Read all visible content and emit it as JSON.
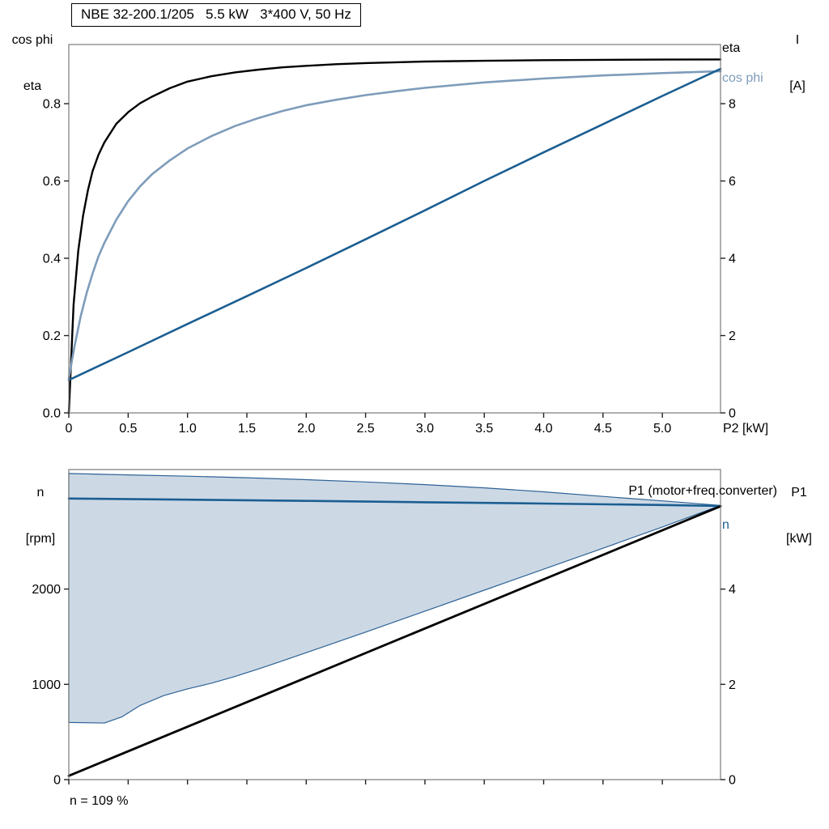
{
  "chart_data": [
    {
      "id": "motor-electrical-curves",
      "type": "line",
      "title": "NBE 32-200.1/205   5.5 kW   3*400 V, 50 Hz",
      "x_axis": {
        "label": "P2 [kW]",
        "min": 0,
        "max": 5.49,
        "ticks": [
          0,
          0.5,
          1,
          1.5,
          2,
          2.5,
          3,
          3.5,
          4,
          4.5,
          5
        ],
        "tick_labels": [
          "0",
          "0.5",
          "1.0",
          "1.5",
          "2.0",
          "2.5",
          "3.0",
          "3.5",
          "4.0",
          "4.5",
          "5.0"
        ]
      },
      "left_axis": {
        "label_line1": "cos phi",
        "label_line2": "eta",
        "min": 0,
        "max": 0.953,
        "ticks": [
          0,
          0.2,
          0.4,
          0.6,
          0.8
        ],
        "tick_labels": [
          "0.0",
          "0.2",
          "0.4",
          "0.6",
          "0.8"
        ]
      },
      "right_axis": {
        "label_line1": "I",
        "label_line2": "[A]",
        "min": 0,
        "max": 9.53,
        "ticks": [
          0,
          2,
          4,
          6,
          8
        ],
        "tick_labels": [
          "0",
          "2",
          "4",
          "6",
          "8"
        ]
      },
      "series": [
        {
          "id": "eta",
          "label": "eta",
          "color": "#000000",
          "width": 2.4,
          "axis": "left",
          "points": [
            [
              0,
              0
            ],
            [
              0.04,
              0.28
            ],
            [
              0.08,
              0.42
            ],
            [
              0.12,
              0.51
            ],
            [
              0.16,
              0.575
            ],
            [
              0.2,
              0.625
            ],
            [
              0.25,
              0.668
            ],
            [
              0.3,
              0.7
            ],
            [
              0.4,
              0.748
            ],
            [
              0.5,
              0.778
            ],
            [
              0.6,
              0.801
            ],
            [
              0.7,
              0.818
            ],
            [
              0.85,
              0.84
            ],
            [
              1,
              0.857
            ],
            [
              1.2,
              0.871
            ],
            [
              1.4,
              0.881
            ],
            [
              1.6,
              0.888
            ],
            [
              1.8,
              0.894
            ],
            [
              2,
              0.898
            ],
            [
              2.25,
              0.902
            ],
            [
              2.5,
              0.905
            ],
            [
              3,
              0.909
            ],
            [
              3.5,
              0.911
            ],
            [
              4,
              0.9125
            ],
            [
              4.5,
              0.9135
            ],
            [
              5,
              0.914
            ],
            [
              5.49,
              0.9145
            ]
          ]
        },
        {
          "id": "cos-phi",
          "label": "cos phi",
          "color": "#7e9cba",
          "width": 2.6,
          "axis": "left",
          "points": [
            [
              0,
              0.09
            ],
            [
              0.05,
              0.175
            ],
            [
              0.1,
              0.25
            ],
            [
              0.15,
              0.31
            ],
            [
              0.2,
              0.36
            ],
            [
              0.25,
              0.405
            ],
            [
              0.3,
              0.44
            ],
            [
              0.4,
              0.5
            ],
            [
              0.5,
              0.548
            ],
            [
              0.6,
              0.586
            ],
            [
              0.7,
              0.617
            ],
            [
              0.85,
              0.653
            ],
            [
              1,
              0.684
            ],
            [
              1.2,
              0.716
            ],
            [
              1.4,
              0.742
            ],
            [
              1.6,
              0.763
            ],
            [
              1.8,
              0.781
            ],
            [
              2,
              0.796
            ],
            [
              2.25,
              0.81
            ],
            [
              2.5,
              0.822
            ],
            [
              2.75,
              0.832
            ],
            [
              3,
              0.841
            ],
            [
              3.5,
              0.855
            ],
            [
              4,
              0.865
            ],
            [
              4.5,
              0.873
            ],
            [
              5,
              0.879
            ],
            [
              5.49,
              0.884
            ]
          ]
        },
        {
          "id": "current",
          "label": "I",
          "color": "#1b5e91",
          "width": 2.6,
          "axis": "right",
          "points": [
            [
              0,
              0.85
            ],
            [
              0.5,
              1.57
            ],
            [
              1,
              2.3
            ],
            [
              1.5,
              3.02
            ],
            [
              2,
              3.75
            ],
            [
              2.5,
              4.49
            ],
            [
              3,
              5.24
            ],
            [
              3.5,
              6.0
            ],
            [
              4,
              6.74
            ],
            [
              4.5,
              7.47
            ],
            [
              5,
              8.2
            ],
            [
              5.49,
              8.9
            ]
          ]
        }
      ]
    },
    {
      "id": "speed-input-power-curves",
      "type": "line",
      "note": "n = 109 %",
      "x_axis": {
        "label": "",
        "min": 0,
        "max": 5.49,
        "ticks": [
          0,
          0.5,
          1,
          1.5,
          2,
          2.5,
          3,
          3.5,
          4,
          4.5,
          5
        ],
        "tick_labels": []
      },
      "left_axis": {
        "label_line1": "n",
        "label_line2": "[rpm]",
        "min": 0,
        "max": 3254,
        "ticks": [
          0,
          1000,
          2000
        ],
        "tick_labels": [
          "0",
          "1000",
          "2000"
        ]
      },
      "right_axis": {
        "label_line1": "P1",
        "label_line2": "[kW]",
        "min": 0,
        "max": 6.51,
        "ticks": [
          0,
          2,
          4
        ],
        "tick_labels": [
          "0",
          "2",
          "4"
        ]
      },
      "series": [
        {
          "id": "speed-range-region",
          "type": "area",
          "fill": "#ccd9e5",
          "stroke": "#2e6295",
          "axis": "left",
          "upper": [
            [
              0,
              3212
            ],
            [
              0.5,
              3198
            ],
            [
              1,
              3184
            ],
            [
              1.5,
              3168
            ],
            [
              2,
              3148
            ],
            [
              2.5,
              3124
            ],
            [
              3,
              3096
            ],
            [
              3.5,
              3062
            ],
            [
              4,
              3020
            ],
            [
              4.5,
              2972
            ],
            [
              5,
              2925
            ],
            [
              5.49,
              2878
            ]
          ],
          "lower": [
            [
              0,
              600
            ],
            [
              0.3,
              594
            ],
            [
              0.45,
              660
            ],
            [
              0.6,
              778
            ],
            [
              0.8,
              882
            ],
            [
              1,
              952
            ],
            [
              1.2,
              1012
            ],
            [
              1.4,
              1082
            ],
            [
              1.6,
              1162
            ],
            [
              1.8,
              1246
            ],
            [
              2,
              1332
            ],
            [
              2.5,
              1548
            ],
            [
              3,
              1768
            ],
            [
              3.5,
              1988
            ],
            [
              4,
              2208
            ],
            [
              4.5,
              2428
            ],
            [
              5,
              2652
            ],
            [
              5.49,
              2878
            ]
          ]
        },
        {
          "id": "speed",
          "label": "n",
          "color": "#1b5e91",
          "width": 2.6,
          "axis": "left",
          "points": [
            [
              0,
              2950
            ],
            [
              1,
              2938
            ],
            [
              2,
              2925
            ],
            [
              3,
              2911
            ],
            [
              4,
              2897
            ],
            [
              5,
              2882
            ],
            [
              5.49,
              2872
            ]
          ]
        },
        {
          "id": "input-power",
          "label": "P1 (motor+freq.converter)",
          "color": "#000000",
          "width": 2.8,
          "axis": "right",
          "points": [
            [
              0,
              0.08
            ],
            [
              5.49,
              5.74
            ]
          ]
        }
      ]
    }
  ]
}
